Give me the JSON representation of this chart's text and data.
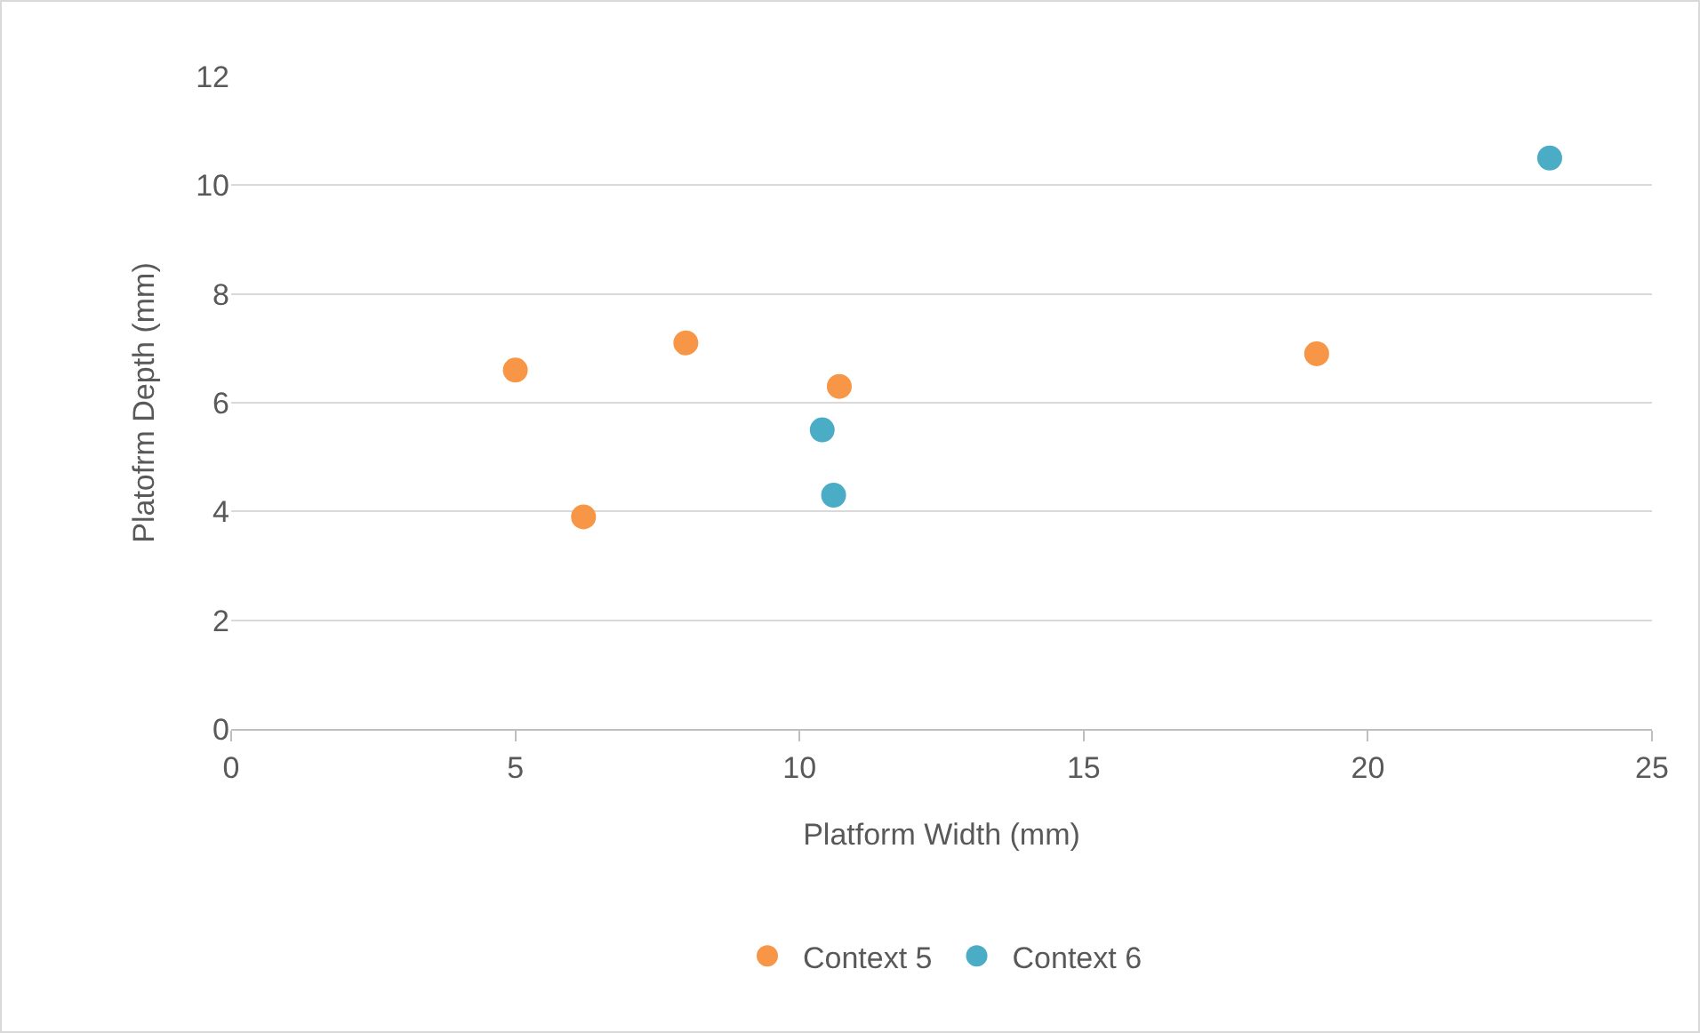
{
  "chart_data": {
    "type": "scatter",
    "xlabel": "Platform Width (mm)",
    "ylabel": "Platofrm Depth (mm)",
    "xlim": [
      0,
      25
    ],
    "xticks": [
      0,
      5,
      10,
      15,
      20,
      25
    ],
    "ylim": [
      0,
      12
    ],
    "yticks": [
      0,
      2,
      4,
      6,
      8,
      10,
      12
    ],
    "grid": "y",
    "legend": "bottom",
    "marker": "circle",
    "series": [
      {
        "name": "Context 5",
        "color": "#f79646",
        "x": [
          5.0,
          6.2,
          8.0,
          10.7,
          19.1
        ],
        "values": [
          6.6,
          3.9,
          7.1,
          6.3,
          6.9
        ]
      },
      {
        "name": "Context 6",
        "color": "#4bacc6",
        "x": [
          10.4,
          10.6,
          23.2
        ],
        "values": [
          5.5,
          4.3,
          10.5
        ]
      }
    ]
  }
}
